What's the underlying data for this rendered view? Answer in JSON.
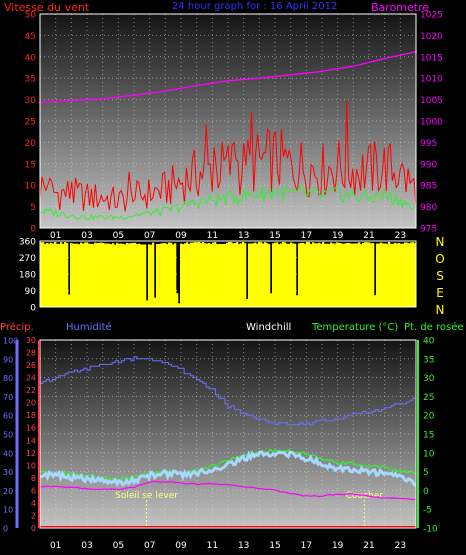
{
  "chart_data": [
    {
      "type": "line",
      "panel": "wind-barometer",
      "title": "24 hour graph for : 16 April 2012",
      "left_axis_label": "Vitesse du vent",
      "right_axis_label": "Barometre",
      "x_ticks": [
        "01",
        "03",
        "05",
        "07",
        "09",
        "11",
        "13",
        "15",
        "17",
        "19",
        "21",
        "23"
      ],
      "x_range_hours": [
        0,
        24
      ],
      "y_left_ticks": [
        "0",
        "5",
        "10",
        "15",
        "20",
        "25",
        "30",
        "35",
        "40",
        "45",
        "50"
      ],
      "y_left_range": [
        0,
        50
      ],
      "y_right_ticks": [
        "975",
        "980",
        "985",
        "990",
        "995",
        "1000",
        "1005",
        "1010",
        "1015",
        "1020",
        "1025"
      ],
      "y_right_range": [
        975,
        1025
      ],
      "grid": true,
      "colors": {
        "wind_gust": "#ff0000",
        "wind_avg": "#33ee33",
        "barometer": "#ff00ff",
        "left_axis": "#ff2020",
        "right_axis": "#ff00ff",
        "title": "#3333ff"
      },
      "series": [
        {
          "name": "Barometre",
          "axis": "right",
          "x": [
            0,
            2,
            4,
            6,
            8,
            10,
            12,
            14,
            16,
            18,
            20,
            22,
            24
          ],
          "values": [
            1004.3,
            1004.8,
            1005.2,
            1006.0,
            1007.0,
            1008.3,
            1009.4,
            1010.0,
            1010.8,
            1011.6,
            1012.8,
            1014.6,
            1016.2
          ]
        },
        {
          "axis": "left",
          "x": [
            0,
            1,
            2,
            3,
            4,
            5,
            6,
            7,
            8,
            9,
            10,
            11,
            12,
            13,
            14,
            15,
            16,
            17,
            18,
            19,
            20,
            21,
            22,
            23,
            24
          ],
          "values": [
            11,
            9,
            9,
            8,
            8,
            7,
            8,
            9,
            10,
            12,
            14,
            15,
            16,
            16,
            17,
            18,
            16,
            16,
            15,
            16,
            15,
            15,
            16,
            14,
            10
          ]
        },
        {
          "axis": "left",
          "x": [
            0,
            1,
            2,
            3,
            4,
            5,
            6,
            7,
            8,
            9,
            10,
            11,
            12,
            13,
            14,
            15,
            16,
            17,
            18,
            19,
            20,
            21,
            22,
            23,
            24
          ],
          "values": [
            4,
            3.5,
            3,
            2.5,
            2.5,
            2.5,
            3,
            3.5,
            4,
            5,
            6,
            6.5,
            7,
            7.5,
            8,
            8.5,
            8,
            8,
            7.5,
            8,
            7.5,
            7,
            7.5,
            6.5,
            4
          ]
        }
      ]
    },
    {
      "type": "bar",
      "panel": "wind-direction",
      "x_range_hours": [
        0,
        24
      ],
      "y_ticks": [
        "360",
        "270",
        "180",
        "90",
        "0"
      ],
      "y_range": [
        0,
        360
      ],
      "compass_labels": [
        "N",
        "O",
        "S",
        "E",
        "N"
      ],
      "colors": {
        "direction": "#ffff00",
        "ticks": "#ffffff",
        "compass": "#ffff00"
      },
      "series": [
        {
          "x": [
            0,
            2,
            4,
            6,
            8,
            10,
            12,
            14,
            16,
            18,
            20,
            22,
            24
          ],
          "values": [
            355,
            355,
            352,
            350,
            352,
            355,
            355,
            355,
            355,
            355,
            355,
            355,
            355
          ]
        }
      ]
    },
    {
      "type": "line",
      "panel": "temperature-humidity",
      "labels": {
        "precip": "Précip.",
        "humidity": "Humidité",
        "windchill": "Windchill",
        "temperature": "Temperature (°C)",
        "dewpoint": "Pt. de rosée"
      },
      "x_ticks": [
        "01",
        "03",
        "05",
        "07",
        "09",
        "11",
        "13",
        "15",
        "17",
        "19",
        "21",
        "23"
      ],
      "x_range_hours": [
        0,
        24
      ],
      "y_humidity_ticks": [
        "0",
        "10",
        "20",
        "30",
        "40",
        "50",
        "60",
        "70",
        "80",
        "90",
        "100"
      ],
      "y_humidity_range": [
        0,
        100
      ],
      "y_precip_ticks": [
        "0",
        "2",
        "4",
        "6",
        "8",
        "10",
        "12",
        "14",
        "16",
        "18",
        "20",
        "22",
        "24",
        "26",
        "28",
        "30"
      ],
      "y_precip_range": [
        0,
        30
      ],
      "y_temp_ticks": [
        "-10",
        "-5",
        "0",
        "5",
        "10",
        "15",
        "20",
        "25",
        "30",
        "35",
        "40"
      ],
      "y_temp_range": [
        -10,
        40
      ],
      "annotations": {
        "sunrise_label": "Soleil se lever",
        "sunrise_hour": 6.8,
        "sunset_label": "Coucher",
        "sunset_hour": 20.7
      },
      "grid": true,
      "colors": {
        "humidity": "#6f6fff",
        "temperature": "#a8d8ff",
        "windchill": "#33ee33",
        "dewpoint": "#ff00ff",
        "precip": "#ff0000",
        "precip_axis": "#ff4040",
        "humidity_axis": "#7070ff",
        "temp_axis": "#33ee33",
        "sun_lines": "#ffff80"
      },
      "series": [
        {
          "name": "Humidité",
          "axis": "humidity",
          "x": [
            0,
            1,
            2,
            3,
            4,
            5,
            6,
            7,
            8,
            9,
            10,
            11,
            12,
            13,
            14,
            15,
            16,
            17,
            18,
            19,
            20,
            21,
            22,
            23,
            24
          ],
          "values": [
            77,
            80,
            83,
            85,
            87,
            89,
            90,
            90,
            88,
            84,
            79,
            73,
            65,
            61,
            58,
            56,
            55,
            56,
            57,
            58,
            60,
            62,
            64,
            66,
            69
          ]
        },
        {
          "name": "Temperature (°C)",
          "axis": "temp",
          "x": [
            0,
            1,
            2,
            3,
            4,
            5,
            6,
            7,
            8,
            9,
            10,
            11,
            12,
            13,
            14,
            15,
            16,
            17,
            18,
            19,
            20,
            21,
            22,
            23,
            24
          ],
          "values": [
            4.2,
            4.0,
            3.5,
            3.0,
            2.5,
            2.2,
            2.5,
            4.0,
            4.5,
            4.2,
            4.6,
            5.5,
            7.0,
            8.5,
            9.5,
            9.8,
            9.5,
            8.5,
            7.0,
            6.0,
            5.5,
            5.0,
            4.5,
            3.5,
            2.0
          ]
        },
        {
          "name": "Windchill",
          "axis": "temp",
          "x": [
            0,
            1,
            2,
            3,
            4,
            5,
            6,
            7,
            8,
            9,
            10,
            11,
            12,
            13,
            14,
            15,
            16,
            17,
            18,
            19,
            20,
            21,
            22,
            23,
            24
          ],
          "values": [
            4.8,
            4.6,
            4.2,
            3.8,
            3.2,
            3.0,
            3.5,
            4.6,
            5.0,
            4.7,
            5.2,
            6.5,
            8.0,
            9.5,
            10.3,
            10.6,
            10.4,
            9.6,
            8.3,
            7.5,
            7.0,
            6.6,
            6.1,
            5.2,
            4.5
          ]
        },
        {
          "name": "Pt. de rosée",
          "axis": "temp",
          "x": [
            0,
            1,
            2,
            3,
            4,
            5,
            6,
            7,
            8,
            9,
            10,
            11,
            12,
            13,
            14,
            15,
            16,
            17,
            18,
            19,
            20,
            21,
            22,
            23,
            24
          ],
          "values": [
            1.0,
            1.0,
            0.8,
            0.5,
            0.3,
            0.3,
            0.8,
            2.2,
            2.3,
            2.0,
            1.6,
            1.8,
            1.5,
            1.0,
            0.5,
            0.0,
            -0.8,
            -1.5,
            -1.5,
            -1.0,
            -1.0,
            -1.5,
            -2.0,
            -2.2,
            -2.5
          ]
        },
        {
          "name": "Précip.",
          "axis": "precip",
          "x": [
            0,
            24
          ],
          "values": [
            0,
            0
          ]
        }
      ]
    }
  ]
}
